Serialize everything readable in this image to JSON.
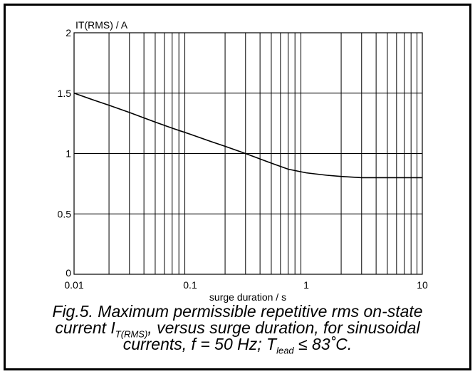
{
  "chart_data": {
    "type": "line",
    "title": "",
    "xlabel": "surge duration / s",
    "ylabel": "IT(RMS) / A",
    "xscale": "log",
    "xlim": [
      0.01,
      10
    ],
    "ylim": [
      0,
      2
    ],
    "x_ticks": [
      {
        "value": 0.01,
        "label": "0.01"
      },
      {
        "value": 0.1,
        "label": "0.1"
      },
      {
        "value": 1,
        "label": "1"
      },
      {
        "value": 10,
        "label": "10"
      }
    ],
    "y_ticks": [
      {
        "value": 0,
        "label": "0"
      },
      {
        "value": 0.5,
        "label": "0.5"
      },
      {
        "value": 1,
        "label": "1"
      },
      {
        "value": 1.5,
        "label": "1.5"
      },
      {
        "value": 2,
        "label": "2"
      }
    ],
    "grid": true,
    "legend": "none",
    "series": [
      {
        "x": [
          0.01,
          0.015,
          0.02,
          0.03,
          0.05,
          0.07,
          0.1,
          0.15,
          0.2,
          0.3,
          0.5,
          0.7,
          1,
          1.5,
          2,
          3,
          5,
          7,
          10
        ],
        "y": [
          1.5,
          1.44,
          1.4,
          1.34,
          1.26,
          1.21,
          1.16,
          1.1,
          1.06,
          1.0,
          0.92,
          0.87,
          0.84,
          0.82,
          0.81,
          0.8,
          0.8,
          0.8,
          0.8
        ]
      }
    ]
  },
  "caption": {
    "line1": "Fig.5.   Maximum permissible repetitive rms on-state",
    "line2_pre": "current I",
    "line2_sub": "T(RMS)",
    "line2_post": ", versus surge duration, for sinusoidal",
    "line3_pre": "currents, f = 50 Hz; T",
    "line3_sub": "lead",
    "line3_post": " ≤ 83˚C."
  }
}
